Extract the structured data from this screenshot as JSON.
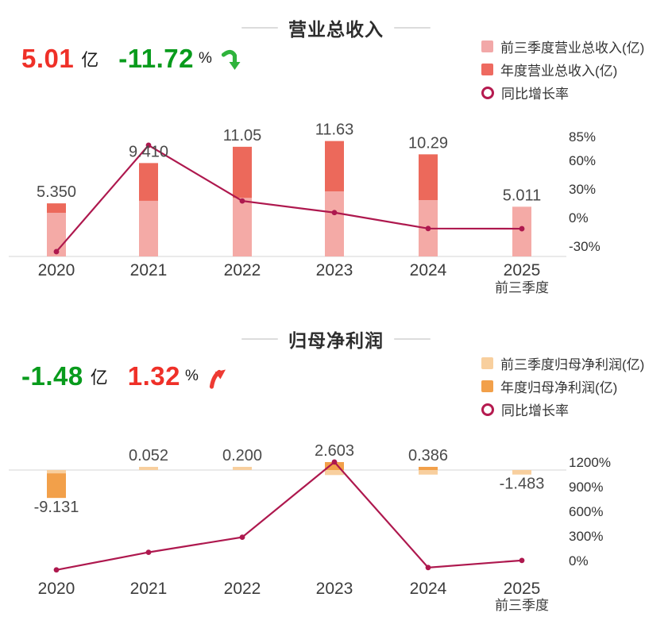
{
  "page": {
    "background": "#ffffff"
  },
  "chart_data": [
    {
      "type": "bar",
      "title": "营业总收入",
      "headline": {
        "value": "5.01",
        "unit": "亿",
        "change": "-11.72",
        "change_unit": "%",
        "direction": "down",
        "value_color": "#ef3028",
        "change_color": "#089b1c",
        "arrow_color": "#2fb33c"
      },
      "legend": [
        {
          "label": "前三季度营业总收入(亿)",
          "color": "#f2a8a8",
          "type": "square"
        },
        {
          "label": "年度营业总收入(亿)",
          "color": "#ee6a60",
          "type": "square"
        },
        {
          "label": "同比增长率",
          "color": "#b51a4f",
          "type": "ring"
        }
      ],
      "categories": [
        "2020",
        "2021",
        "2022",
        "2023",
        "2024",
        "2025"
      ],
      "last_category_sublabel": "前三季度",
      "bar_labels": [
        "5.350",
        "9.410",
        "11.05",
        "11.63",
        "10.29",
        "5.011"
      ],
      "series": [
        {
          "name": "前三季度营业总收入(亿)",
          "color": "#f4aaa6",
          "values": [
            4.4,
            5.61,
            5.91,
            6.56,
            5.68,
            5.011
          ]
        },
        {
          "name": "年度营业总收入(亿)",
          "color": "#ec695b",
          "values": [
            5.35,
            9.41,
            11.05,
            11.63,
            10.29,
            null
          ]
        },
        {
          "name": "同比增长率",
          "color": "#ae184e",
          "unit": "%",
          "values": [
            -35.8,
            75.9,
            17.4,
            5.2,
            -11.5,
            -11.72
          ]
        }
      ],
      "right_axis": {
        "tick_labels": [
          "85%",
          "60%",
          "30%",
          "0%",
          "-30%"
        ],
        "tick_values": [
          85,
          60,
          30,
          0,
          -30
        ]
      },
      "ylabel": "",
      "xlabel": "",
      "grid": false,
      "legend_position": "top-right"
    },
    {
      "type": "bar",
      "title": "归母净利润",
      "headline": {
        "value": "-1.48",
        "unit": "亿",
        "change": "1.32",
        "change_unit": "%",
        "direction": "up",
        "value_color": "#089b1c",
        "change_color": "#ef3028",
        "arrow_color": "#ee3a33"
      },
      "legend": [
        {
          "label": "前三季度归母净利润(亿)",
          "color": "#f8cf9e",
          "type": "square"
        },
        {
          "label": "年度归母净利润(亿)",
          "color": "#f2a04a",
          "type": "square"
        },
        {
          "label": "同比增长率",
          "color": "#b51a4f",
          "type": "ring"
        }
      ],
      "categories": [
        "2020",
        "2021",
        "2022",
        "2023",
        "2024",
        "2025"
      ],
      "last_category_sublabel": "前三季度",
      "bar_labels": [
        "-9.131",
        "0.052",
        "0.200",
        "2.603",
        "0.386",
        "-1.483"
      ],
      "series": [
        {
          "name": "前三季度归母净利润(亿)",
          "color": "#f8cf9e",
          "values": [
            -1.1,
            0.34,
            0.52,
            -1.64,
            -1.5,
            -1.483
          ]
        },
        {
          "name": "年度归母净利润(亿)",
          "color": "#f2a04a",
          "values": [
            -9.131,
            0.052,
            0.2,
            2.603,
            0.386,
            null
          ]
        },
        {
          "name": "同比增长率",
          "color": "#ae184e",
          "unit": "%",
          "values": [
            -114,
            100.6,
            284.6,
            1201.4,
            -85.2,
            1.32
          ]
        }
      ],
      "right_axis": {
        "tick_labels": [
          "1200%",
          "900%",
          "600%",
          "300%",
          "0%"
        ],
        "tick_values": [
          1200,
          900,
          600,
          300,
          0
        ]
      },
      "ylabel": "",
      "xlabel": "",
      "grid": false,
      "legend_position": "top-right"
    }
  ]
}
